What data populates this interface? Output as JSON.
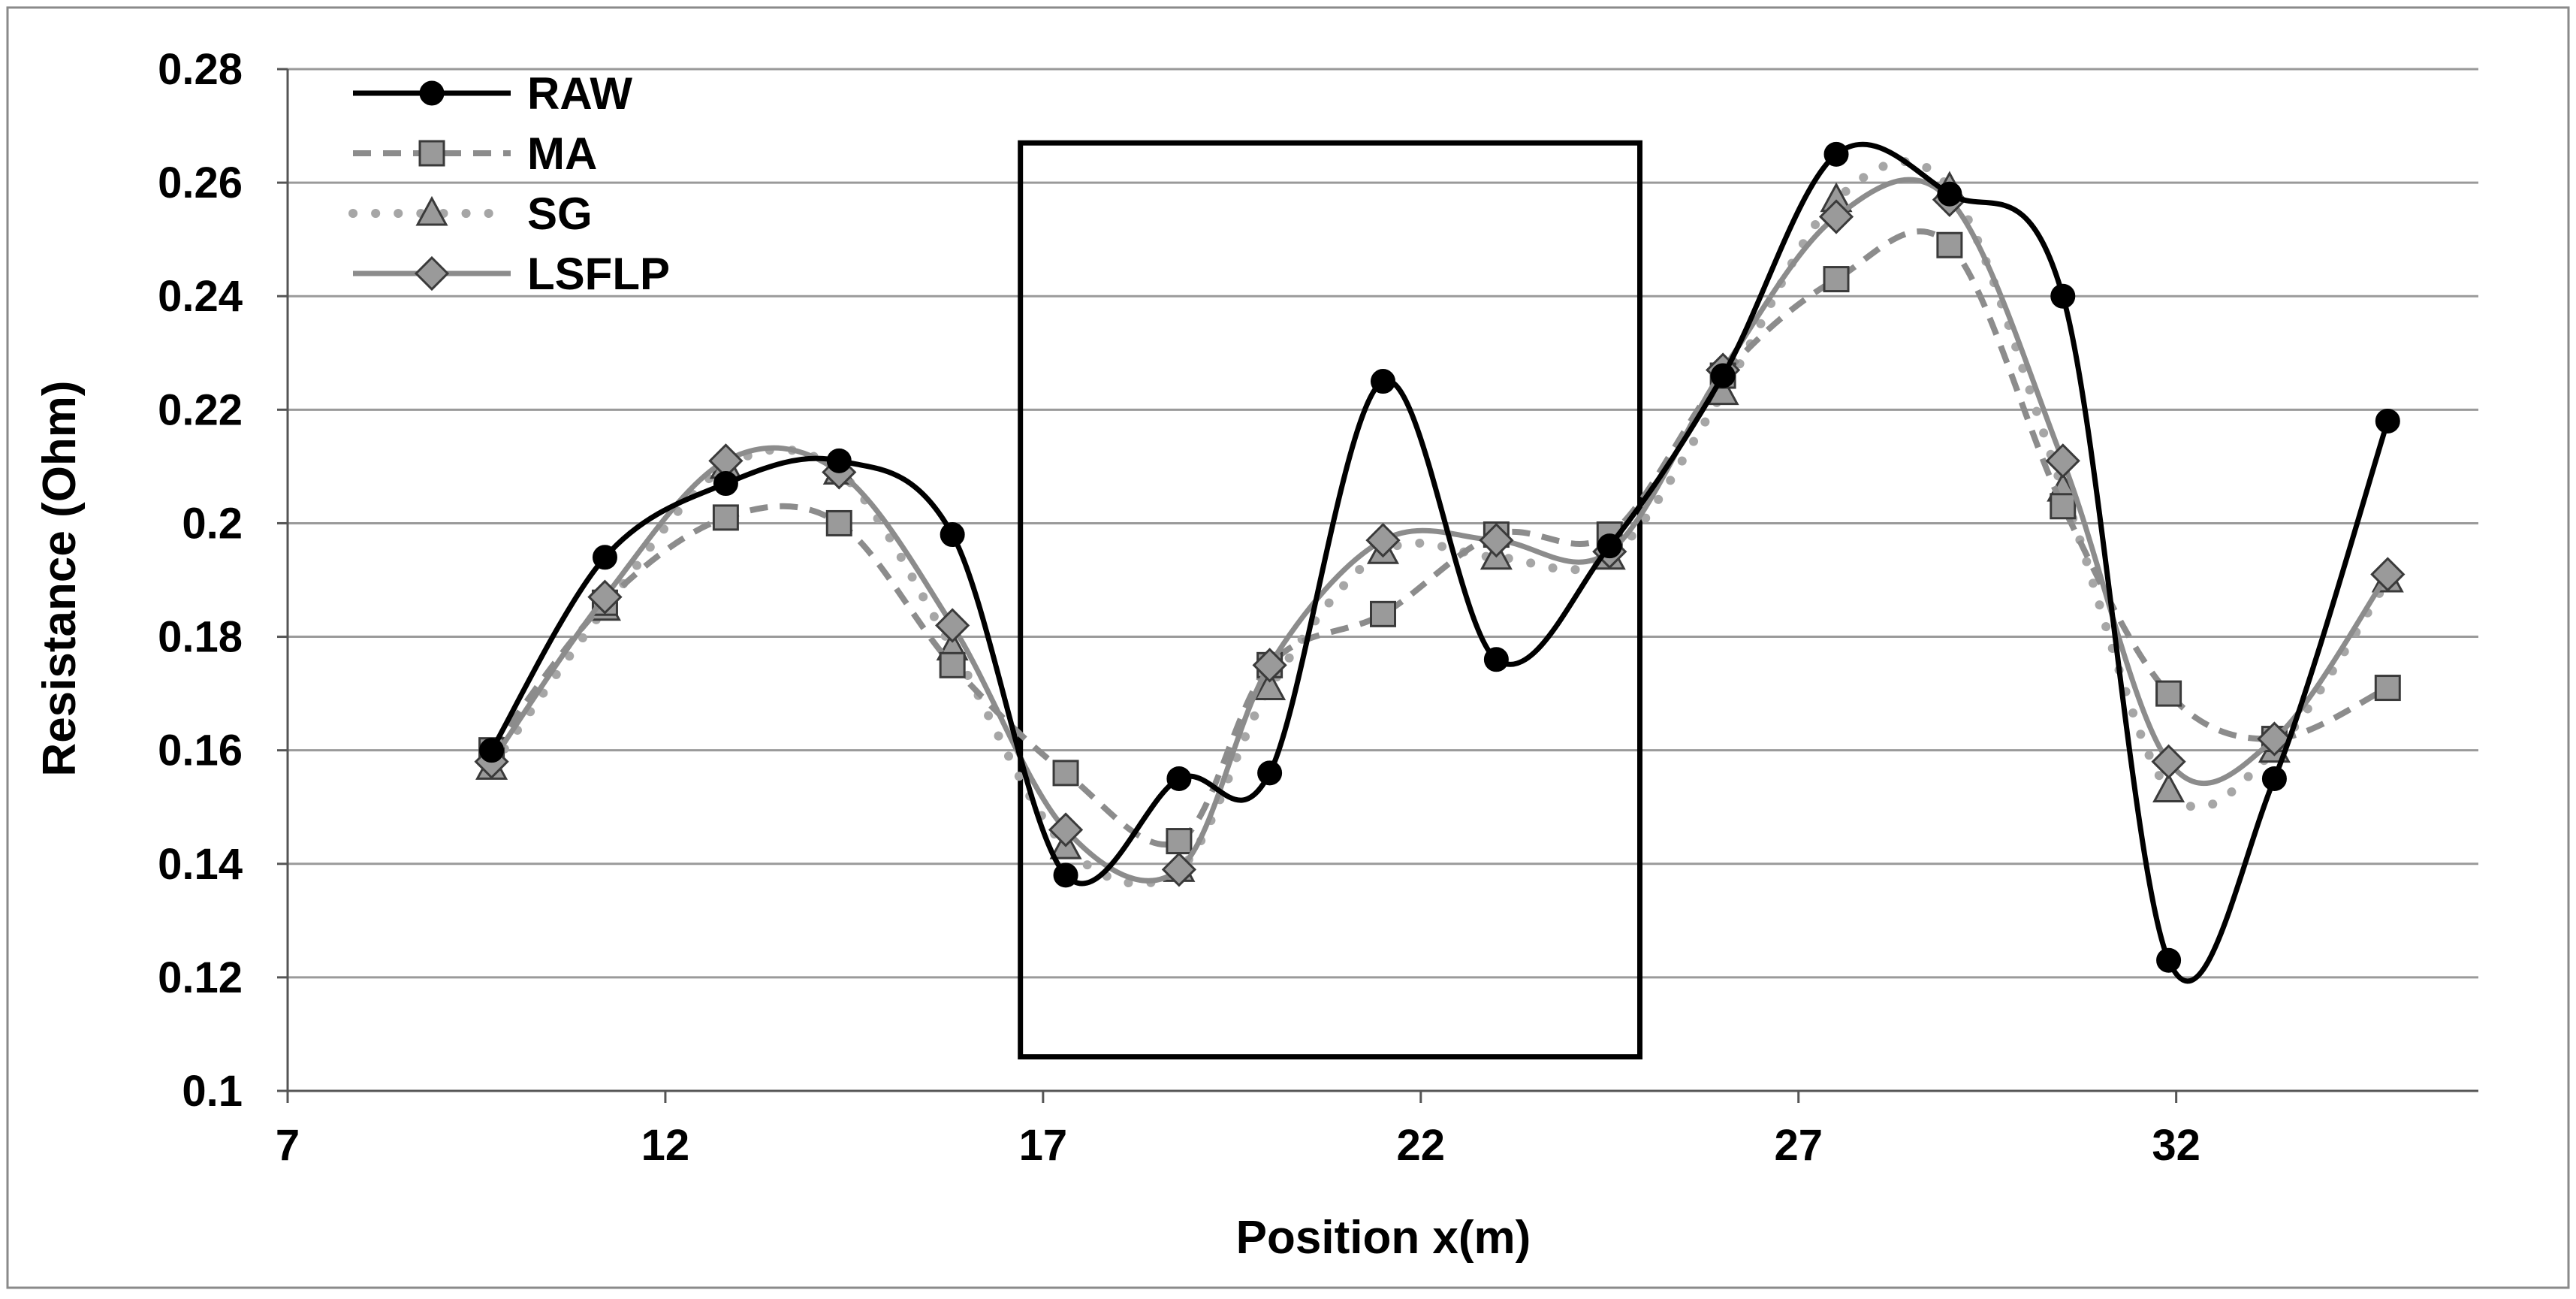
{
  "chart_data": {
    "type": "line",
    "title": "",
    "xlabel": "Position x(m)",
    "ylabel": "Resistance (Ohm)",
    "xlim": [
      7,
      36
    ],
    "ylim": [
      0.1,
      0.28
    ],
    "x_ticks": [
      7,
      12,
      17,
      22,
      27,
      32
    ],
    "x_tick_labels": [
      "7",
      "12",
      "17",
      "22",
      "27",
      "32"
    ],
    "y_ticks": [
      0.1,
      0.12,
      0.14,
      0.16,
      0.18,
      0.2,
      0.22,
      0.24,
      0.26,
      0.28
    ],
    "y_tick_labels": [
      "0.1",
      "0.12",
      "0.14",
      "0.16",
      "0.18",
      "0.2",
      "0.22",
      "0.24",
      "0.26",
      "0.28"
    ],
    "grid": "horizontal",
    "legend_position": "top-left",
    "highlight_region": {
      "x_range": [
        16.7,
        24.9
      ],
      "y_range": [
        0.106,
        0.267
      ]
    },
    "series": [
      {
        "name": "RAW",
        "color": "#000000",
        "line_style": "solid",
        "marker": "circle",
        "marker_color": "#000000",
        "x": [
          9.7,
          11.2,
          12.8,
          14.3,
          15.8,
          17.3,
          18.8,
          20.0,
          21.5,
          23.0,
          24.5,
          26.0,
          27.5,
          29.0,
          30.5,
          31.9,
          33.3,
          34.8
        ],
        "y": [
          0.16,
          0.194,
          0.207,
          0.211,
          0.198,
          0.138,
          0.155,
          0.156,
          0.225,
          0.176,
          0.196,
          0.226,
          0.265,
          0.258,
          0.24,
          0.123,
          0.155,
          0.218
        ]
      },
      {
        "name": "MA",
        "color": "#8c8c8c",
        "line_style": "dashed",
        "marker": "square",
        "marker_color": "#9a9a9a",
        "x": [
          9.7,
          11.2,
          12.8,
          14.3,
          15.8,
          17.3,
          18.8,
          20.0,
          21.5,
          23.0,
          24.5,
          26.0,
          27.5,
          29.0,
          30.5,
          31.9,
          33.3,
          34.8
        ],
        "y": [
          0.16,
          0.186,
          0.201,
          0.2,
          0.175,
          0.156,
          0.144,
          0.175,
          0.184,
          0.198,
          0.198,
          0.226,
          0.243,
          0.249,
          0.203,
          0.17,
          0.162,
          0.171
        ]
      },
      {
        "name": "SG",
        "color": "#a6a6a6",
        "line_style": "dotted",
        "marker": "triangle",
        "marker_color": "#9a9a9a",
        "x": [
          9.7,
          11.2,
          12.8,
          14.3,
          15.8,
          17.3,
          18.8,
          20.0,
          21.5,
          23.0,
          24.5,
          26.0,
          27.5,
          29.0,
          30.5,
          31.9,
          33.3,
          34.8
        ],
        "y": [
          0.157,
          0.185,
          0.21,
          0.209,
          0.178,
          0.143,
          0.139,
          0.171,
          0.195,
          0.194,
          0.194,
          0.223,
          0.257,
          0.259,
          0.206,
          0.153,
          0.16,
          0.19
        ]
      },
      {
        "name": "LSFLP",
        "color": "#8c8c8c",
        "line_style": "solid",
        "marker": "diamond",
        "marker_color": "#9a9a9a",
        "x": [
          9.7,
          11.2,
          12.8,
          14.3,
          15.8,
          17.3,
          18.8,
          20.0,
          21.5,
          23.0,
          24.5,
          26.0,
          27.5,
          29.0,
          30.5,
          31.9,
          33.3,
          34.8
        ],
        "y": [
          0.158,
          0.187,
          0.211,
          0.209,
          0.182,
          0.146,
          0.139,
          0.175,
          0.197,
          0.197,
          0.195,
          0.227,
          0.254,
          0.257,
          0.211,
          0.158,
          0.162,
          0.191
        ]
      }
    ]
  }
}
